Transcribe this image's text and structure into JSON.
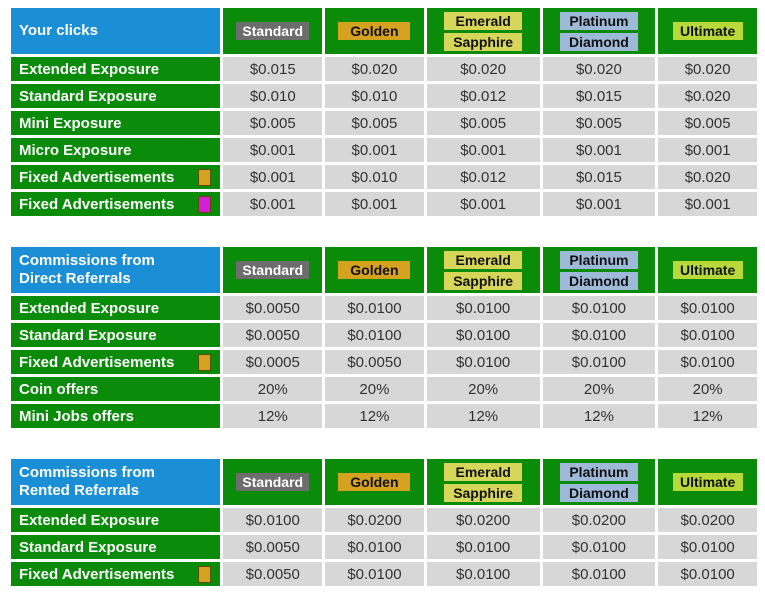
{
  "tiers": {
    "standard": "Standard",
    "golden": "Golden",
    "emerald": "Emerald",
    "sapphire": "Sapphire",
    "platinum": "Platinum",
    "diamond": "Diamond",
    "ultimate": "Ultimate"
  },
  "colors": {
    "label_bg": "#0a8c0a",
    "title_bg": "#1b8fd6",
    "value_bg": "#d7d7d7",
    "swatch_orange": "#d4a21e",
    "swatch_magenta": "#d41ed4"
  },
  "clicks": {
    "title": "Your clicks",
    "rows": [
      {
        "label": "Extended Exposure",
        "swatch": "",
        "values": [
          "$0.015",
          "$0.020",
          "$0.020",
          "$0.020",
          "$0.020"
        ]
      },
      {
        "label": "Standard Exposure",
        "swatch": "",
        "values": [
          "$0.010",
          "$0.010",
          "$0.012",
          "$0.015",
          "$0.020"
        ]
      },
      {
        "label": "Mini Exposure",
        "swatch": "",
        "values": [
          "$0.005",
          "$0.005",
          "$0.005",
          "$0.005",
          "$0.005"
        ]
      },
      {
        "label": "Micro Exposure",
        "swatch": "",
        "values": [
          "$0.001",
          "$0.001",
          "$0.001",
          "$0.001",
          "$0.001"
        ]
      },
      {
        "label": "Fixed Advertisements",
        "swatch": "#d4a21e",
        "values": [
          "$0.001",
          "$0.010",
          "$0.012",
          "$0.015",
          "$0.020"
        ]
      },
      {
        "label": "Fixed Advertisements",
        "swatch": "#d41ed4",
        "values": [
          "$0.001",
          "$0.001",
          "$0.001",
          "$0.001",
          "$0.001"
        ]
      }
    ]
  },
  "direct": {
    "title_line1": "Commissions from",
    "title_line2": "Direct Referrals",
    "rows": [
      {
        "label": "Extended Exposure",
        "swatch": "",
        "values": [
          "$0.0050",
          "$0.0100",
          "$0.0100",
          "$0.0100",
          "$0.0100"
        ]
      },
      {
        "label": "Standard Exposure",
        "swatch": "",
        "values": [
          "$0.0050",
          "$0.0100",
          "$0.0100",
          "$0.0100",
          "$0.0100"
        ]
      },
      {
        "label": "Fixed Advertisements",
        "swatch": "#d4a21e",
        "values": [
          "$0.0005",
          "$0.0050",
          "$0.0100",
          "$0.0100",
          "$0.0100"
        ]
      },
      {
        "label": "Coin offers",
        "swatch": "",
        "values": [
          "20%",
          "20%",
          "20%",
          "20%",
          "20%"
        ]
      },
      {
        "label": "Mini Jobs offers",
        "swatch": "",
        "values": [
          "12%",
          "12%",
          "12%",
          "12%",
          "12%"
        ]
      }
    ]
  },
  "rented": {
    "title_line1": "Commissions from",
    "title_line2": "Rented Referrals",
    "rows": [
      {
        "label": "Extended Exposure",
        "swatch": "",
        "values": [
          "$0.0100",
          "$0.0200",
          "$0.0200",
          "$0.0200",
          "$0.0200"
        ]
      },
      {
        "label": "Standard Exposure",
        "swatch": "",
        "values": [
          "$0.0050",
          "$0.0100",
          "$0.0100",
          "$0.0100",
          "$0.0100"
        ]
      },
      {
        "label": "Fixed Advertisements",
        "swatch": "#d4a21e",
        "values": [
          "$0.0050",
          "$0.0100",
          "$0.0100",
          "$0.0100",
          "$0.0100"
        ]
      }
    ]
  }
}
